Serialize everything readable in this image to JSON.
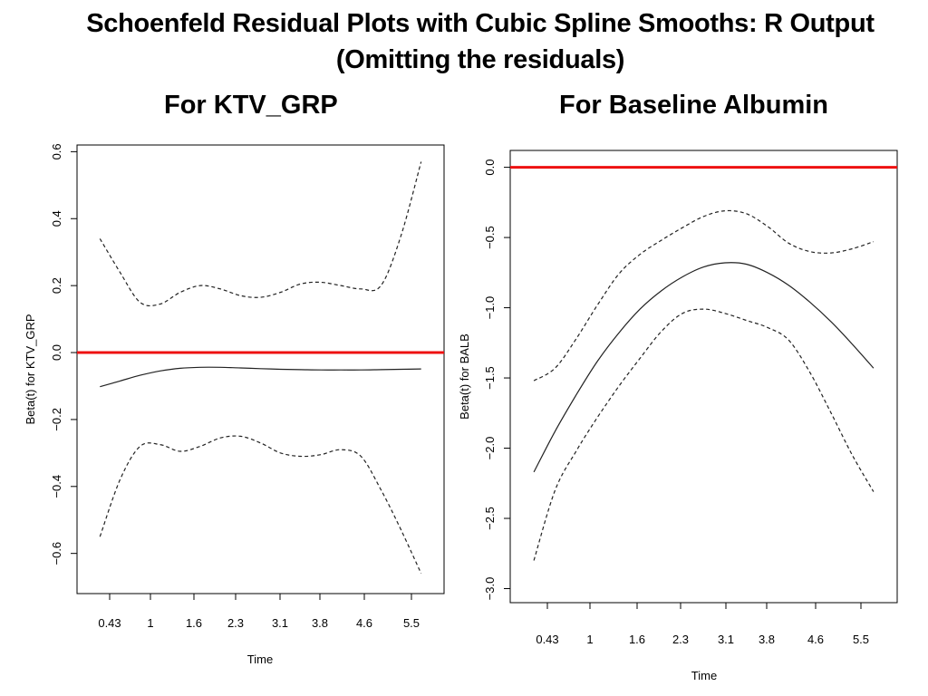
{
  "slide": {
    "title_line1": "Schoenfeld Residual Plots with Cubic Spline Smooths:   R Output",
    "title_line2": "(Omitting the residuals)",
    "left_heading": "For KTV_GRP",
    "right_heading": "For Baseline Albumin"
  },
  "colors": {
    "reference_line": "#ee1111",
    "curve": "#222222",
    "axes": "#000000"
  },
  "chart_data": [
    {
      "type": "line",
      "xlabel": "Time",
      "ylabel": "Beta(t) for KTV_GRP",
      "x_tick_labels": [
        "0.43",
        "1",
        "1.6",
        "2.3",
        "3.1",
        "3.8",
        "4.6",
        "5.5"
      ],
      "y_ticks": [
        -0.6,
        -0.4,
        -0.2,
        0.0,
        0.2,
        0.4,
        0.6
      ],
      "y_tick_labels": [
        "−0.6",
        "−0.4",
        "−0.2",
        "0.0",
        "0.2",
        "0.4",
        "0.6"
      ],
      "ylim": [
        -0.72,
        0.62
      ],
      "reference_line": 0.0,
      "series": [
        {
          "style": "solid",
          "points": [
            [
              0,
              -0.102
            ],
            [
              0.5,
              -0.085
            ],
            [
              1,
              -0.068
            ],
            [
              1.5,
              -0.055
            ],
            [
              2,
              -0.047
            ],
            [
              2.5,
              -0.044
            ],
            [
              3,
              -0.044
            ],
            [
              3.5,
              -0.046
            ],
            [
              4,
              -0.048
            ],
            [
              4.5,
              -0.05
            ],
            [
              5,
              -0.051
            ],
            [
              5.5,
              -0.052
            ],
            [
              6,
              -0.052
            ],
            [
              6.5,
              -0.052
            ],
            [
              7,
              -0.051
            ],
            [
              7.5,
              -0.05
            ],
            [
              8,
              -0.049
            ]
          ]
        },
        {
          "style": "dashed",
          "points": [
            [
              0,
              0.34
            ],
            [
              0.5,
              0.24
            ],
            [
              1,
              0.15
            ],
            [
              1.5,
              0.145
            ],
            [
              2,
              0.18
            ],
            [
              2.5,
              0.2
            ],
            [
              3,
              0.19
            ],
            [
              3.5,
              0.17
            ],
            [
              4,
              0.165
            ],
            [
              4.5,
              0.18
            ],
            [
              5,
              0.205
            ],
            [
              5.5,
              0.21
            ],
            [
              6,
              0.2
            ],
            [
              6.5,
              0.19
            ],
            [
              7,
              0.2
            ],
            [
              7.5,
              0.35
            ],
            [
              8,
              0.57
            ]
          ]
        },
        {
          "style": "dashed",
          "points": [
            [
              0,
              -0.55
            ],
            [
              0.5,
              -0.38
            ],
            [
              1,
              -0.28
            ],
            [
              1.5,
              -0.275
            ],
            [
              2,
              -0.295
            ],
            [
              2.5,
              -0.28
            ],
            [
              3,
              -0.255
            ],
            [
              3.5,
              -0.25
            ],
            [
              4,
              -0.27
            ],
            [
              4.5,
              -0.3
            ],
            [
              5,
              -0.31
            ],
            [
              5.5,
              -0.305
            ],
            [
              6,
              -0.29
            ],
            [
              6.5,
              -0.31
            ],
            [
              7,
              -0.41
            ],
            [
              7.5,
              -0.53
            ],
            [
              8,
              -0.66
            ]
          ]
        }
      ]
    },
    {
      "type": "line",
      "xlabel": "Time",
      "ylabel": "Beta(t) for BALB",
      "x_tick_labels": [
        "0.43",
        "1",
        "1.6",
        "2.3",
        "3.1",
        "3.8",
        "4.6",
        "5.5"
      ],
      "y_ticks": [
        -3.0,
        -2.5,
        -2.0,
        -1.5,
        -1.0,
        -0.5,
        0.0
      ],
      "y_tick_labels": [
        "−3.0",
        "−2.5",
        "−2.0",
        "−1.5",
        "−1.0",
        "−0.5",
        "0.0"
      ],
      "ylim": [
        -3.1,
        0.12
      ],
      "reference_line": 0.0,
      "series": [
        {
          "style": "solid",
          "points": [
            [
              0,
              -2.17
            ],
            [
              0.5,
              -1.88
            ],
            [
              1,
              -1.62
            ],
            [
              1.5,
              -1.38
            ],
            [
              2,
              -1.18
            ],
            [
              2.5,
              -1.01
            ],
            [
              3,
              -0.88
            ],
            [
              3.5,
              -0.78
            ],
            [
              4,
              -0.71
            ],
            [
              4.5,
              -0.68
            ],
            [
              5,
              -0.69
            ],
            [
              5.5,
              -0.75
            ],
            [
              6,
              -0.84
            ],
            [
              6.5,
              -0.96
            ],
            [
              7,
              -1.1
            ],
            [
              7.5,
              -1.26
            ],
            [
              8,
              -1.43
            ]
          ]
        },
        {
          "style": "dashed",
          "points": [
            [
              0,
              -1.52
            ],
            [
              0.5,
              -1.43
            ],
            [
              1,
              -1.22
            ],
            [
              1.5,
              -0.98
            ],
            [
              2,
              -0.76
            ],
            [
              2.5,
              -0.62
            ],
            [
              3,
              -0.52
            ],
            [
              3.5,
              -0.43
            ],
            [
              4,
              -0.35
            ],
            [
              4.5,
              -0.31
            ],
            [
              5,
              -0.33
            ],
            [
              5.5,
              -0.42
            ],
            [
              6,
              -0.54
            ],
            [
              6.5,
              -0.6
            ],
            [
              7,
              -0.61
            ],
            [
              7.5,
              -0.58
            ],
            [
              8,
              -0.53
            ]
          ]
        },
        {
          "style": "dashed",
          "points": [
            [
              0,
              -2.8
            ],
            [
              0.5,
              -2.3
            ],
            [
              1,
              -2.02
            ],
            [
              1.5,
              -1.78
            ],
            [
              2,
              -1.56
            ],
            [
              2.5,
              -1.36
            ],
            [
              3,
              -1.17
            ],
            [
              3.5,
              -1.04
            ],
            [
              4,
              -1.01
            ],
            [
              4.5,
              -1.04
            ],
            [
              5,
              -1.09
            ],
            [
              5.5,
              -1.14
            ],
            [
              6,
              -1.23
            ],
            [
              6.5,
              -1.46
            ],
            [
              7,
              -1.75
            ],
            [
              7.5,
              -2.05
            ],
            [
              8,
              -2.31
            ]
          ]
        }
      ]
    }
  ]
}
